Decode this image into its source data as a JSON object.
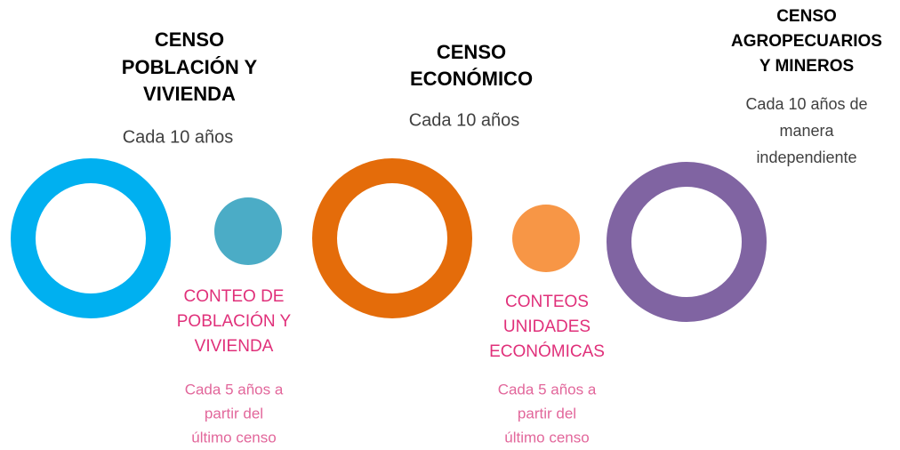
{
  "nodes": [
    {
      "title": [
        "CENSO",
        "POBLACIÓN Y",
        "VIVIENDA"
      ],
      "subtitle": [
        "Cada 10 años"
      ]
    },
    {
      "title": [
        "CONTEO DE",
        "POBLACIÓN Y",
        "VIVIENDA"
      ],
      "subtitle": [
        "Cada 5 años a",
        "partir del",
        "último censo"
      ]
    },
    {
      "title": [
        "CENSO",
        "ECONÓMICO"
      ],
      "subtitle": [
        "Cada 10 años"
      ]
    },
    {
      "title": [
        "CONTEOS",
        "UNIDADES",
        "ECONÓMICAS"
      ],
      "subtitle": [
        "Cada 5 años a",
        "partir del",
        "último censo"
      ]
    },
    {
      "title": [
        "CENSO",
        "AGROPECUARIOS",
        "Y MINEROS"
      ],
      "subtitle": [
        "Cada 10 años de",
        "manera",
        "independiente"
      ]
    }
  ]
}
